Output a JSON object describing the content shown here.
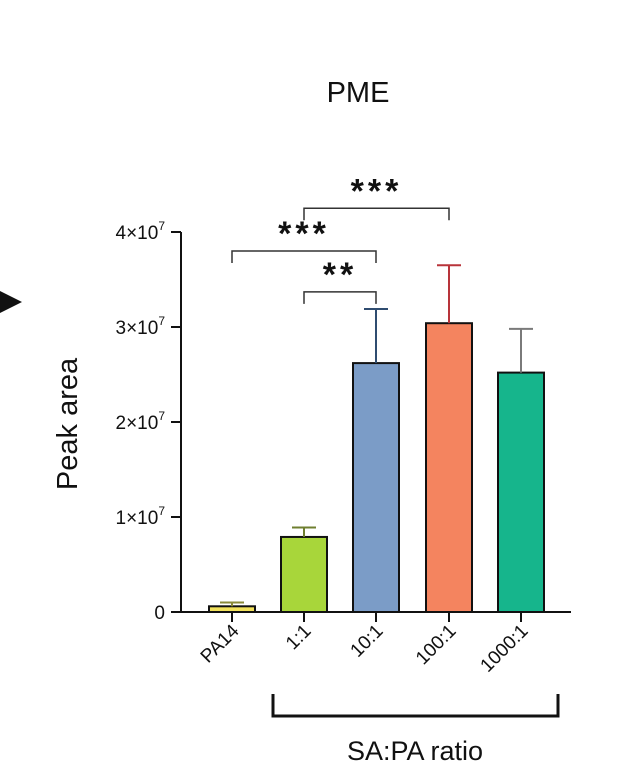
{
  "chart_data": {
    "type": "bar",
    "title": "PME",
    "ylabel": "Peak area",
    "xlabel": "",
    "group_label": "SA:PA ratio",
    "categories": [
      "PA14",
      "1:1",
      "10:1",
      "100:1",
      "1000:1"
    ],
    "values": [
      600000,
      7900000,
      26200000,
      30400000,
      25200000
    ],
    "errors": [
      400000,
      1000000,
      5700000,
      6100000,
      4600000
    ],
    "colors": [
      "#f2e25c",
      "#a8d63a",
      "#7b9cc7",
      "#f4845f",
      "#16b58c"
    ],
    "error_colors": [
      "#8a8a3a",
      "#6f7f30",
      "#2f4c70",
      "#b8343a",
      "#7a7a7a"
    ],
    "ylim": [
      0,
      40000000
    ],
    "yticks": [
      {
        "value": 0,
        "base": "0",
        "exp": ""
      },
      {
        "value": 10000000,
        "base": "1×10",
        "exp": "7"
      },
      {
        "value": 20000000,
        "base": "2×10",
        "exp": "7"
      },
      {
        "value": 30000000,
        "base": "3×10",
        "exp": "7"
      },
      {
        "value": 40000000,
        "base": "4×10",
        "exp": "7"
      }
    ],
    "significance": [
      {
        "from": 1,
        "to": 3,
        "label": "***",
        "y": 42500000
      },
      {
        "from": 0,
        "to": 2,
        "label": "***",
        "y": 38000000
      },
      {
        "from": 1,
        "to": 2,
        "label": "**",
        "y": 33700000
      }
    ]
  }
}
